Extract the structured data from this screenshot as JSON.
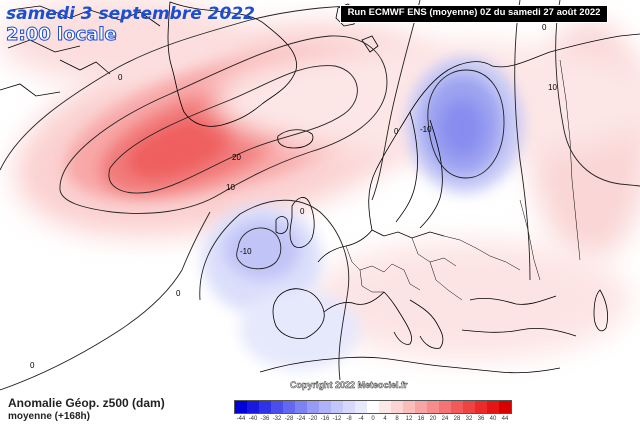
{
  "header": {
    "date": "samedi 3 septembre 2022",
    "time": "2:00 locale",
    "run": "Run ECMWF ENS (moyenne) 0Z du samedi 27 août 2022"
  },
  "copyright": "Copyright 2022 Meteociel.fr",
  "legend": {
    "title": "Anomalie Géop. z500 (dam)",
    "subtitle": "moyenne    (+168h)",
    "ticks": [
      "-44",
      "-40",
      "-36",
      "-32",
      "-28",
      "-24",
      "-20",
      "-16",
      "-12",
      "-8",
      "-4",
      "0",
      "4",
      "8",
      "12",
      "16",
      "20",
      "24",
      "28",
      "32",
      "36",
      "40",
      "44"
    ],
    "colors": [
      "#0000d8",
      "#1818e0",
      "#2f32e6",
      "#4a4fec",
      "#6468f0",
      "#7d82f3",
      "#979bf6",
      "#aeb2f8",
      "#c3c6fa",
      "#d6d8fc",
      "#e8e9fd",
      "#ffffff",
      "#fde8e8",
      "#fcd4d4",
      "#fbbcbc",
      "#f9a4a4",
      "#f78c8c",
      "#f57373",
      "#f25a5a",
      "#ef4242",
      "#ec2a2a",
      "#e51515",
      "#d80000"
    ]
  },
  "contour_labels": [
    "0",
    "0",
    "0",
    "0",
    "0",
    "0",
    "20",
    "10",
    "10",
    "-10",
    "-10",
    "10"
  ]
}
